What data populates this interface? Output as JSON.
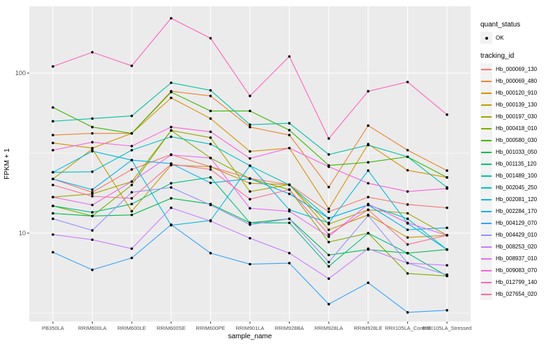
{
  "figure": {
    "background": "#FFFFFF",
    "panel_bg": "#EBEBEB",
    "grid_color": "#FFFFFF",
    "axis_text_color": "#4D4D4D",
    "axis_title_color": "#000000",
    "tick_mark_color": "#333333",
    "point_color": "#000000",
    "legend_key_bg": "#F2F2F2"
  },
  "legend": {
    "quant_status_title": "quant_status",
    "quant_status_items": [
      "OK"
    ],
    "tracking_id_title": "tracking_id"
  },
  "chart_data": {
    "type": "line",
    "title": "",
    "xlabel": "sample_name",
    "ylabel": "FPKM + 1",
    "y_scale": "log10",
    "y_ticks": [
      100,
      10
    ],
    "y_minor_ticks": [
      31.6,
      3.16
    ],
    "ylim": [
      2.8,
      259
    ],
    "grid": true,
    "legend_position": "right",
    "point_shape": "filled-circle",
    "categories": [
      "PB350LA",
      "RRIM600LA",
      "RRIM600LE",
      "RRIM600SE",
      "RRIM600PE",
      "RRIM901LA",
      "RRIM928BA",
      "RRIM928LA",
      "RRIM928LE",
      "RRII105LA_Control",
      "RRII105LA_Stressed"
    ],
    "series": [
      {
        "name": "Hb_000069_130",
        "color": "#F8766D",
        "values": [
          21.8,
          18.0,
          25.0,
          31.0,
          26.0,
          22.0,
          20.1,
          13.6,
          16.8,
          15.1,
          14.4
        ]
      },
      {
        "name": "Hb_000069_480",
        "color": "#EA8331",
        "values": [
          41.0,
          42.0,
          42.0,
          77.0,
          72.0,
          46.0,
          41.0,
          19.4,
          47.0,
          33.0,
          24.6
        ]
      },
      {
        "name": "Hb_000120_910",
        "color": "#D89000",
        "values": [
          36.6,
          34.0,
          42.0,
          70.0,
          52.0,
          32.4,
          34.0,
          14.2,
          36.0,
          24.7,
          22.3
        ]
      },
      {
        "name": "Hb_000139_130",
        "color": "#C09B00",
        "values": [
          21.8,
          33.6,
          13.7,
          26.6,
          26.0,
          20.5,
          20.1,
          10.5,
          13.0,
          9.4,
          9.7
        ]
      },
      {
        "name": "Hb_000197_030",
        "color": "#A3A500",
        "values": [
          16.8,
          17.6,
          21.0,
          43.8,
          39.5,
          18.2,
          20.1,
          11.4,
          14.0,
          13.3,
          9.7
        ]
      },
      {
        "name": "Hb_000418_010",
        "color": "#7CAE00",
        "values": [
          14.8,
          12.8,
          20.0,
          43.8,
          29.5,
          21.9,
          18.7,
          8.8,
          10.0,
          5.6,
          5.4
        ]
      },
      {
        "name": "Hb_000580_030",
        "color": "#39B600",
        "values": [
          61.0,
          46.0,
          42.0,
          76.0,
          58.0,
          58.0,
          44.0,
          26.5,
          27.7,
          30.0,
          22.3
        ]
      },
      {
        "name": "Hb_001033_050",
        "color": "#00BB4E",
        "values": [
          13.3,
          12.8,
          13.0,
          16.5,
          15.2,
          11.6,
          12.3,
          7.3,
          7.9,
          7.5,
          7.9
        ]
      },
      {
        "name": "Hb_001135_120",
        "color": "#00BF7D",
        "values": [
          14.8,
          13.5,
          15.2,
          20.5,
          22.3,
          11.6,
          11.6,
          6.2,
          10.0,
          7.5,
          5.4
        ]
      },
      {
        "name": "Hb_001489_100",
        "color": "#00C1A3",
        "values": [
          50.0,
          52.0,
          54.0,
          87.0,
          78.0,
          47.6,
          48.6,
          31.0,
          35.5,
          30.0,
          19.3
        ]
      },
      {
        "name": "Hb_002045_250",
        "color": "#00BFC4",
        "values": [
          24.0,
          24.2,
          33.0,
          40.0,
          36.0,
          26.4,
          20.0,
          12.4,
          15.0,
          12.3,
          7.9
        ]
      },
      {
        "name": "Hb_002081_120",
        "color": "#00BAE0",
        "values": [
          24.0,
          32.5,
          28.6,
          11.2,
          12.0,
          26.4,
          14.0,
          11.6,
          24.6,
          11.5,
          7.9
        ]
      },
      {
        "name": "Hb_002284_170",
        "color": "#00B0F6",
        "values": [
          21.8,
          18.7,
          28.6,
          27.2,
          20.6,
          21.9,
          17.6,
          12.4,
          15.0,
          10.5,
          10.8
        ]
      },
      {
        "name": "Hb_004129_070",
        "color": "#35A2FF",
        "values": [
          7.6,
          5.9,
          7.0,
          11.3,
          7.5,
          6.4,
          6.5,
          3.6,
          4.9,
          3.2,
          3.3
        ]
      },
      {
        "name": "Hb_004429_010",
        "color": "#9590FF",
        "values": [
          12.3,
          10.4,
          18.0,
          19.3,
          15.0,
          11.3,
          12.3,
          6.6,
          12.9,
          6.5,
          5.5
        ]
      },
      {
        "name": "Hb_008253_020",
        "color": "#C77CFF",
        "values": [
          9.8,
          9.1,
          8.0,
          14.4,
          11.9,
          9.3,
          7.5,
          5.2,
          8.0,
          6.5,
          6.3
        ]
      },
      {
        "name": "Hb_008937_010",
        "color": "#E76BF3",
        "values": [
          16.8,
          15.0,
          21.0,
          30.8,
          29.5,
          14.3,
          13.7,
          9.5,
          15.2,
          11.6,
          9.7
        ]
      },
      {
        "name": "Hb_009083_070",
        "color": "#FA62DB",
        "values": [
          33.0,
          37.0,
          35.0,
          46.0,
          43.0,
          29.3,
          34.0,
          26.0,
          20.5,
          18.2,
          19.0
        ]
      },
      {
        "name": "Hb_012799_140",
        "color": "#FF62BC",
        "values": [
          110,
          135,
          111,
          220,
          165,
          72,
          127,
          39,
          77,
          88,
          55
        ]
      },
      {
        "name": "Hb_027654_020",
        "color": "#FF6A98",
        "values": [
          20.0,
          17.0,
          16.5,
          27.0,
          25.0,
          16.3,
          18.7,
          9.8,
          14.0,
          8.5,
          9.7
        ]
      }
    ]
  }
}
